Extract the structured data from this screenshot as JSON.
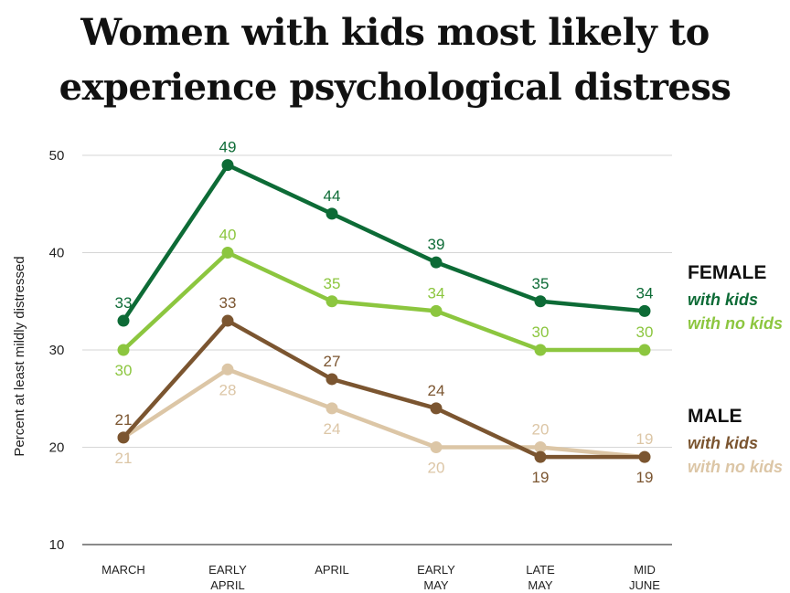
{
  "title_lines": [
    "Women with kids most likely to",
    "experience psychological distress"
  ],
  "chart_data": {
    "type": "line",
    "ylabel": "Percent at least mildly distressed",
    "ylim": [
      10,
      50
    ],
    "yticks": [
      10,
      20,
      30,
      40,
      50
    ],
    "grid": true,
    "categories": [
      "MARCH",
      "EARLY APRIL",
      "APRIL",
      "EARLY MAY",
      "LATE MAY",
      "MID JUNE"
    ],
    "series": [
      {
        "group": "FEMALE",
        "name": "with kids",
        "color": "#0d6b36",
        "values": [
          33,
          49,
          44,
          39,
          35,
          34
        ]
      },
      {
        "group": "FEMALE",
        "name": "with no kids",
        "color": "#8cc63f",
        "values": [
          30,
          40,
          35,
          34,
          30,
          30
        ]
      },
      {
        "group": "MALE",
        "name": "with kids",
        "color": "#7b5530",
        "values": [
          21,
          33,
          27,
          24,
          19,
          19
        ]
      },
      {
        "group": "MALE",
        "name": "with no kids",
        "color": "#dcc6a6",
        "values": [
          21,
          28,
          24,
          20,
          20,
          19
        ]
      }
    ],
    "legend": {
      "placement": "right",
      "groups": [
        {
          "heading": "FEMALE",
          "items": [
            "with kids",
            "with no kids"
          ]
        },
        {
          "heading": "MALE",
          "items": [
            "with kids",
            "with no kids"
          ]
        }
      ]
    }
  }
}
